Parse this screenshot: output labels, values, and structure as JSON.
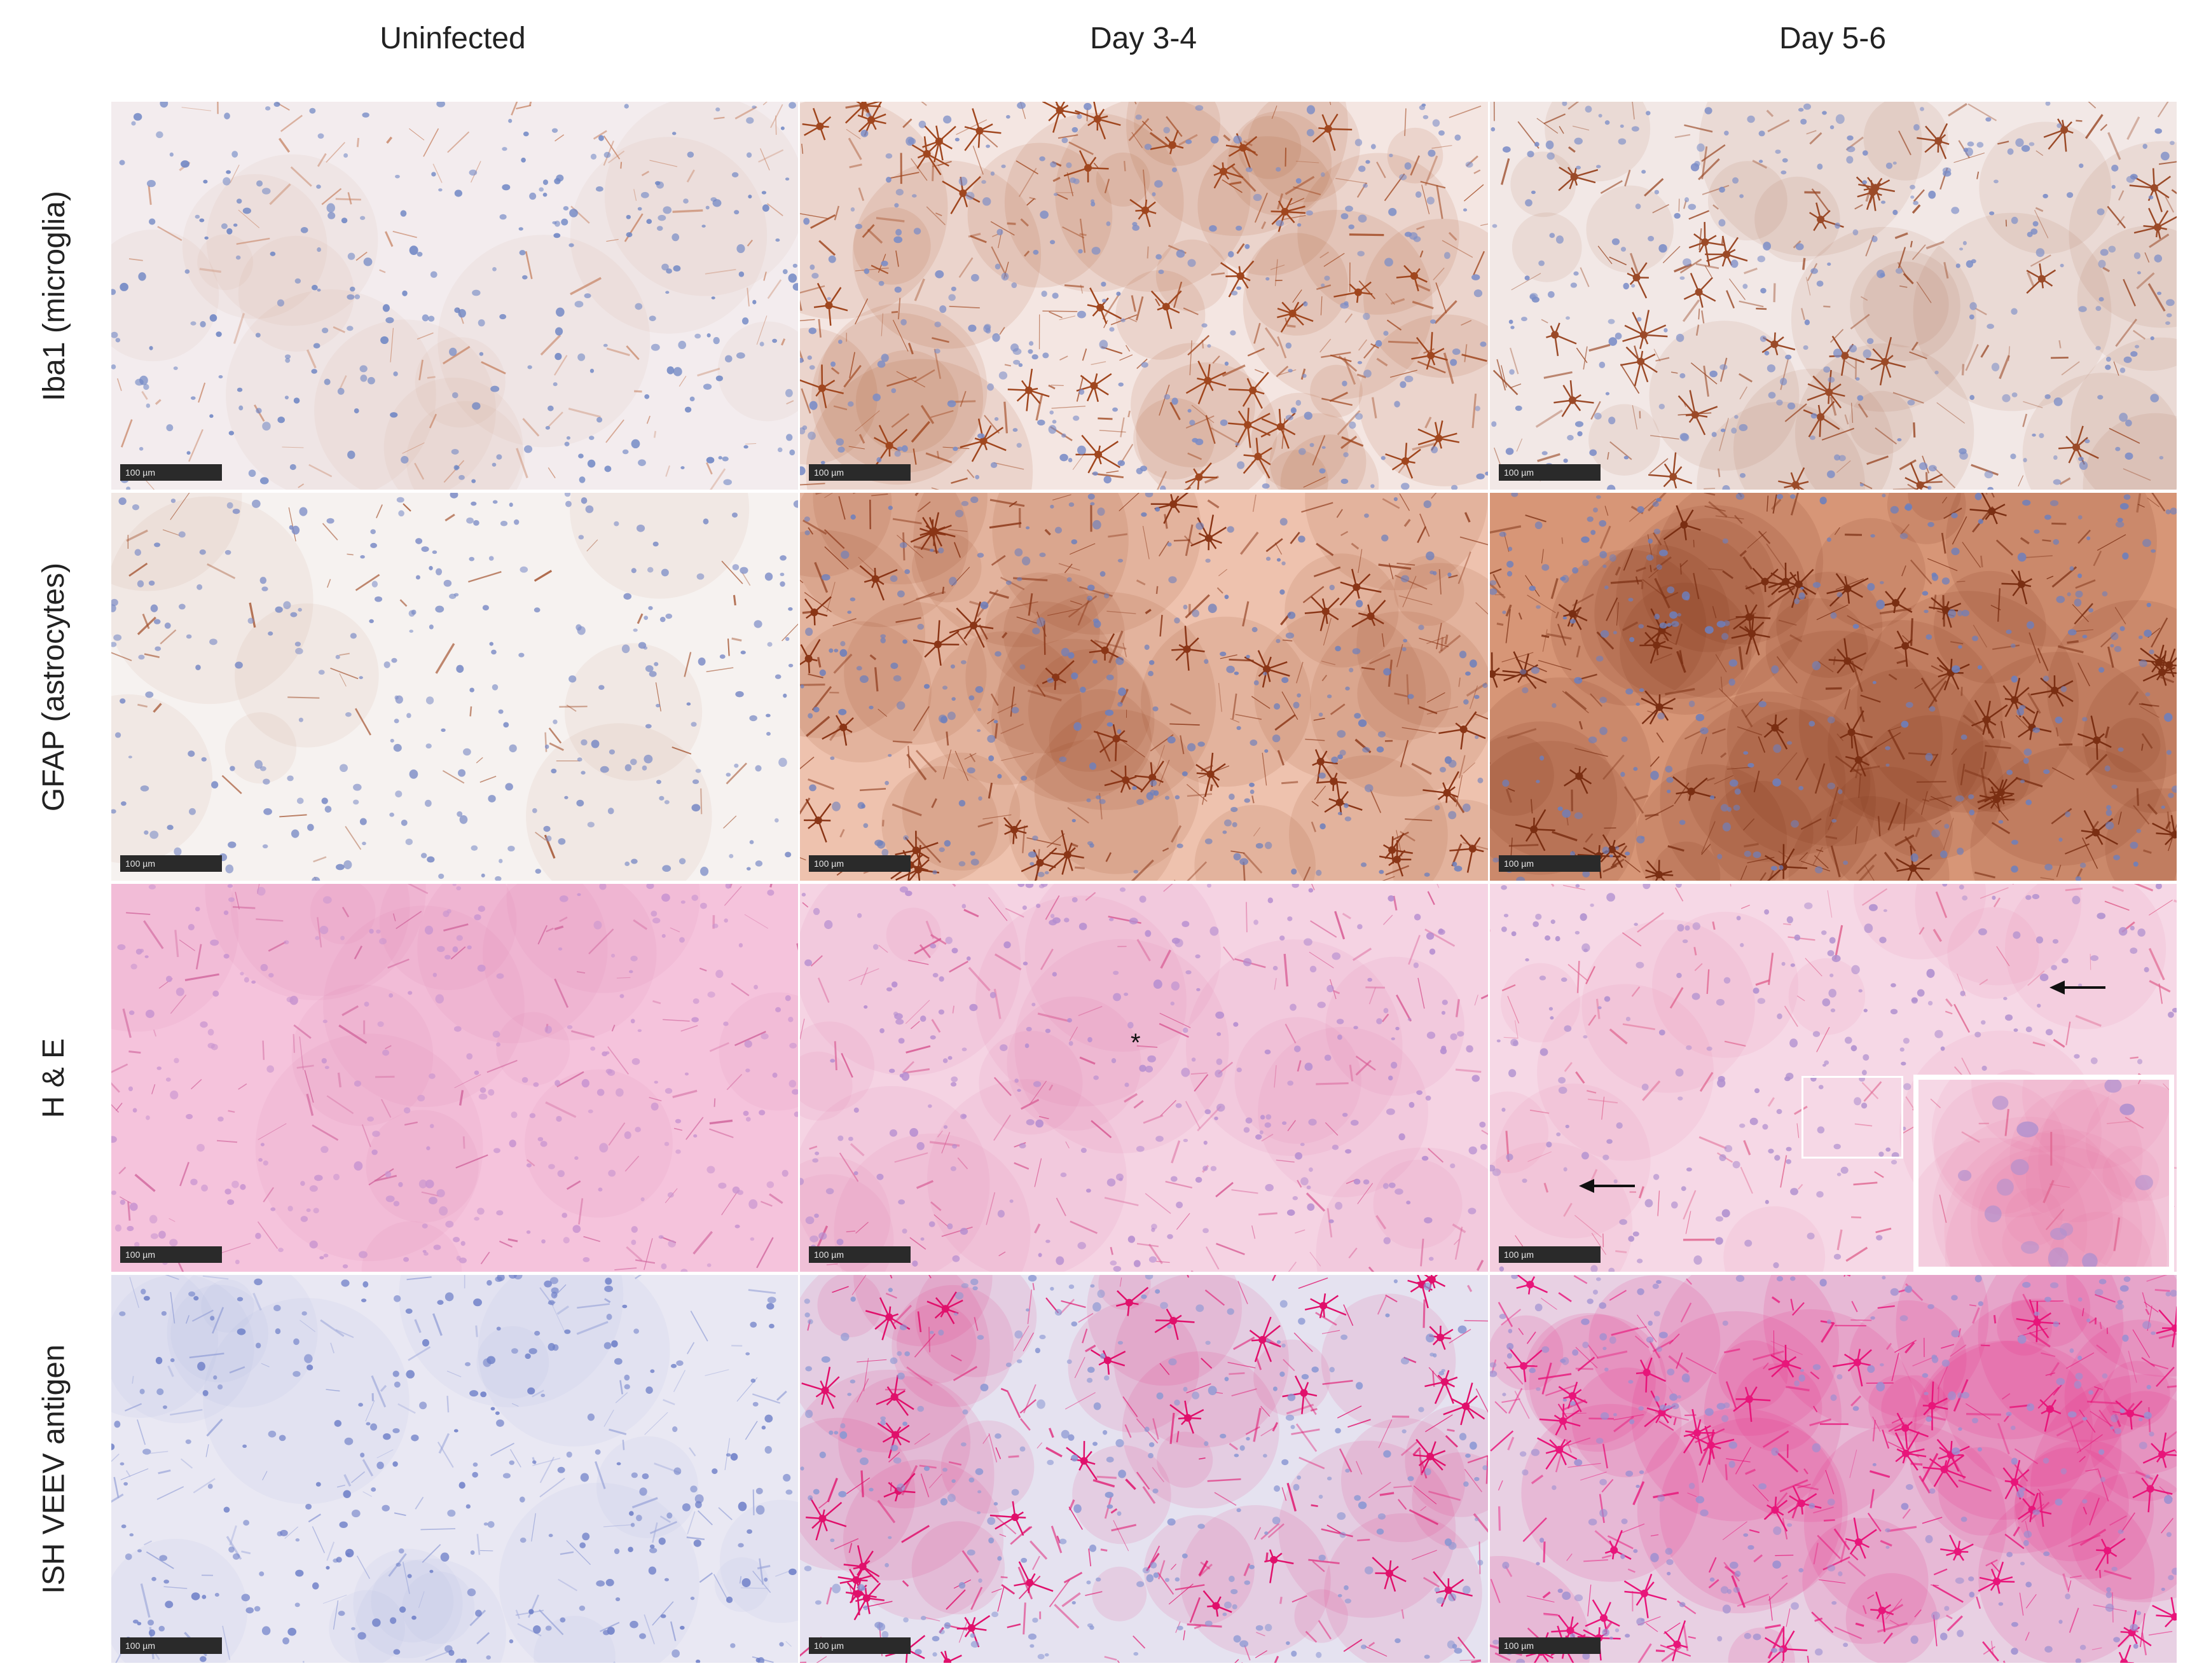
{
  "columns": [
    "Uninfected",
    "Day 3-4",
    "Day 5-6"
  ],
  "rows": [
    "Iba1 (microglia)",
    "GFAP  (astrocytes)",
    "H & E",
    "ISH VEEV antigen"
  ],
  "scale_bar_label": "100 µm",
  "annotations": {
    "asterisk": "*"
  },
  "stains": {
    "iba1_uninfected": {
      "bg": "#f3ecee",
      "cell": "#6f86c4",
      "fiber": "#c9886a",
      "density": 0.35
    },
    "iba1_day3": {
      "bg": "#f4e6e2",
      "cell": "#7a8cc7",
      "fiber": "#a0461e",
      "density": 0.85
    },
    "iba1_day5": {
      "bg": "#f2e8e6",
      "cell": "#7a8cc7",
      "fiber": "#9b4a28",
      "density": 0.6
    },
    "gfap_uninfected": {
      "bg": "#f6f2f0",
      "cell": "#7c8cc6",
      "fiber": "#a3512d",
      "density": 0.2
    },
    "gfap_day3": {
      "bg": "#eec2ae",
      "cell": "#6d7fbd",
      "fiber": "#8a3516",
      "density": 0.8
    },
    "gfap_day5": {
      "bg": "#d79677",
      "cell": "#6d7fbd",
      "fiber": "#7a2e12",
      "density": 0.95
    },
    "he_uninfected": {
      "bg": "#f5c3dc",
      "cell": "#c995d0",
      "fiber": "#d1669d",
      "density": 0.4
    },
    "he_day3": {
      "bg": "#f5d3e3",
      "cell": "#b58dd0",
      "fiber": "#d85a93",
      "density": 0.5
    },
    "he_day5": {
      "bg": "#f6d8e6",
      "cell": "#b090cf",
      "fiber": "#e0648f",
      "density": 0.45
    },
    "ish_uninfected": {
      "bg": "#e9e8f3",
      "cell": "#6f80c8",
      "fiber": "#9aa5d9",
      "density": 0.5
    },
    "ish_day3": {
      "bg": "#e5e2f0",
      "cell": "#8a97d3",
      "fiber": "#e0106b",
      "density": 0.75
    },
    "ish_day5": {
      "bg": "#e8d0e3",
      "cell": "#9c8fd1",
      "fiber": "#e8157a",
      "density": 0.98
    }
  }
}
